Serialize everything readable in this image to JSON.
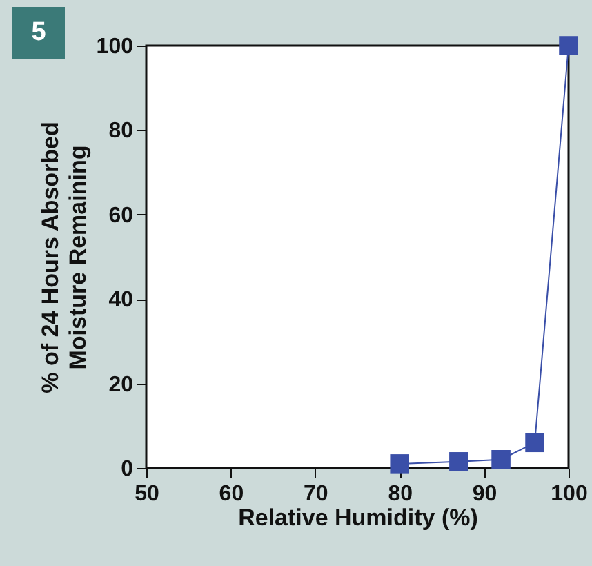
{
  "chart_data": {
    "type": "line",
    "xlabel": "Relative Humidity (%)",
    "ylabel": "% of 24 Hours Absorbed\nMoisture Remaining",
    "annotations": [
      "5"
    ],
    "x": [
      80,
      87,
      92,
      96,
      100
    ],
    "series": [
      {
        "color": "#3a4fa8",
        "values": [
          1,
          1.5,
          2,
          6,
          100
        ]
      }
    ],
    "xlim": [
      50,
      100
    ],
    "xticks": [
      50,
      60,
      70,
      80,
      90,
      100
    ],
    "ylim": [
      0,
      100
    ],
    "yticks": [
      0,
      20,
      40,
      60,
      80,
      100
    ],
    "marker": "square",
    "grid": false,
    "legend": false
  }
}
